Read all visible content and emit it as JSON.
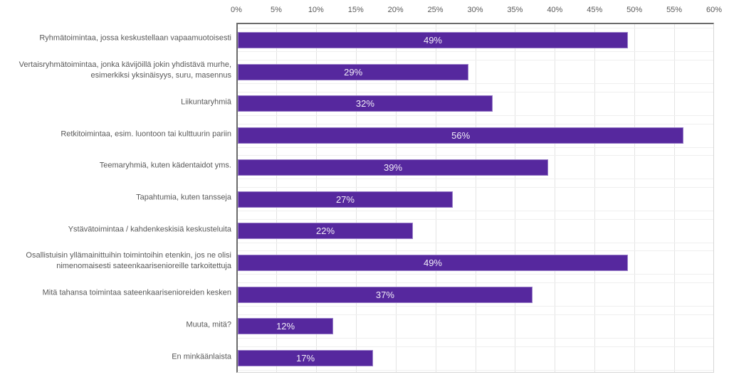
{
  "chart_data": {
    "type": "bar",
    "orientation": "horizontal",
    "title": "",
    "xlabel": "",
    "ylabel": "",
    "xlim": [
      0,
      60
    ],
    "x_tick_step": 5,
    "x_ticks": [
      "0%",
      "5%",
      "10%",
      "15%",
      "20%",
      "25%",
      "30%",
      "35%",
      "40%",
      "45%",
      "50%",
      "55%",
      "60%"
    ],
    "grid": true,
    "legend": false,
    "categories": [
      "Ryhmätoimintaa, jossa keskustellaan vapaamuotoisesti",
      "Vertaisryhmätoimintaa, jonka kävijöillä jokin yhdistävä murhe, esimerkiksi yksinäisyys, suru, masennus",
      "Liikuntaryhmiä",
      "Retkitoimintaa, esim. luontoon tai kulttuurin pariin",
      "Teemaryhmiä, kuten kädentaidot yms.",
      "Tapahtumia, kuten tansseja",
      "Ystävätoimintaa / kahdenkeskisiä keskusteluita",
      "Osallistuisin yllämainittuihin toimintoihin etenkin, jos ne olisi nimenomaisesti sateenkaarisenioreille tarkoitettuja",
      "Mitä tahansa toimintaa sateenkaarisenioreiden kesken",
      "Muuta, mitä?",
      "En minkäänlaista"
    ],
    "values": [
      49,
      29,
      32,
      56,
      39,
      27,
      22,
      49,
      37,
      12,
      17
    ],
    "value_labels": [
      "49%",
      "29%",
      "32%",
      "56%",
      "39%",
      "27%",
      "22%",
      "49%",
      "37%",
      "12%",
      "17%"
    ],
    "colors": {
      "bar": "#56289E",
      "value_text": "#F1EDF8",
      "axis_text": "#595959",
      "border_dark": "#6B6B6B",
      "border_light": "#D6D6D6",
      "grid_vertical": "#E4E4E4",
      "grid_horizontal": "#EFEFEF",
      "background": "#FFFFFF"
    }
  }
}
